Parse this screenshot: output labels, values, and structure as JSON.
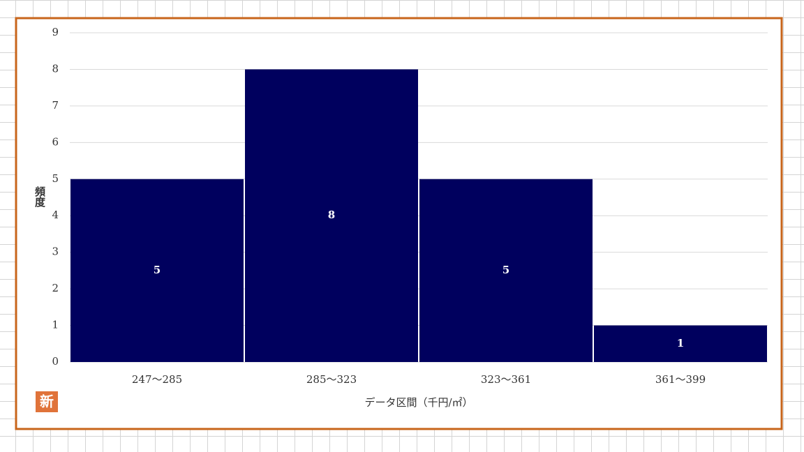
{
  "chart_data": {
    "type": "bar",
    "x_label": "データ区間（千円/㎡）",
    "y_label": "頻度",
    "badge": "新",
    "categories": [
      "247～285",
      "285～323",
      "323～361",
      "361～399"
    ],
    "values": [
      5,
      8,
      5,
      1
    ],
    "color": "#00005e",
    "ylim": [
      0,
      9
    ],
    "yticks": [
      0,
      1,
      2,
      3,
      4,
      5,
      6,
      7,
      8,
      9
    ],
    "grid": true
  }
}
